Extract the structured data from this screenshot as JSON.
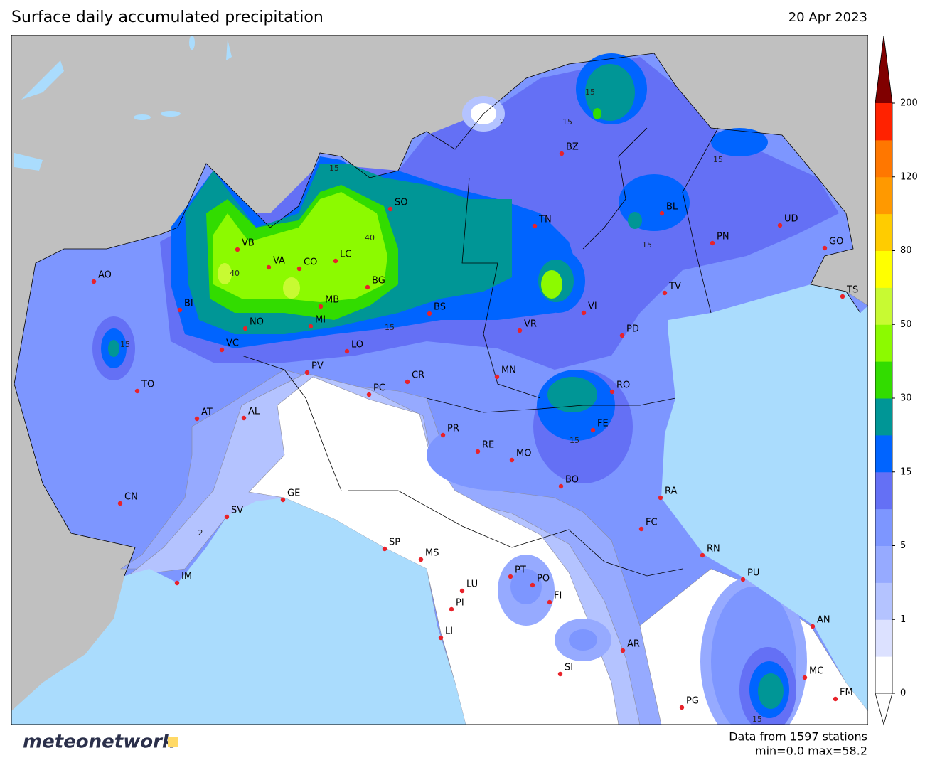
{
  "header": {
    "title": "Surface daily accumulated precipitation",
    "date": "20 Apr 2023"
  },
  "map": {
    "stations": [
      "AO",
      "VB",
      "VA",
      "CO",
      "LC",
      "SO",
      "BG",
      "MB",
      "MI",
      "BI",
      "NO",
      "VC",
      "LO",
      "BS",
      "BZ",
      "TN",
      "VR",
      "VI",
      "BL",
      "UD",
      "PN",
      "GO",
      "TS",
      "TV",
      "PD",
      "TO",
      "AT",
      "AL",
      "PV",
      "PC",
      "CR",
      "MN",
      "RO",
      "FE",
      "PR",
      "RE",
      "MO",
      "BO",
      "RA",
      "FC",
      "RN",
      "PU",
      "AN",
      "MC",
      "FM",
      "PG",
      "AR",
      "SI",
      "FI",
      "PO",
      "PT",
      "LU",
      "PI",
      "LI",
      "MS",
      "SP",
      "GE",
      "SV",
      "IM",
      "CN"
    ],
    "contour_labels": [
      "15",
      "15",
      "15",
      "15",
      "15",
      "15",
      "15",
      "15",
      "15",
      "40",
      "40",
      "2",
      "2"
    ]
  },
  "colorbar": {
    "ticks": [
      0,
      1,
      5,
      15,
      30,
      50,
      80,
      120,
      200
    ],
    "colors": [
      "#ffffff",
      "#dce1ff",
      "#b4c3ff",
      "#96aaff",
      "#7d96ff",
      "#6470f5",
      "#0064ff",
      "#009696",
      "#32dc00",
      "#8cfa00",
      "#c8fa32",
      "#ffff00",
      "#ffcc00",
      "#ff9900",
      "#ff7700",
      "#ff2200"
    ],
    "over_color": "#800000"
  },
  "footer": {
    "logo": "meteonetwork",
    "source": "Data from 1597 stations",
    "stats": "min=0.0 max=58.2"
  }
}
